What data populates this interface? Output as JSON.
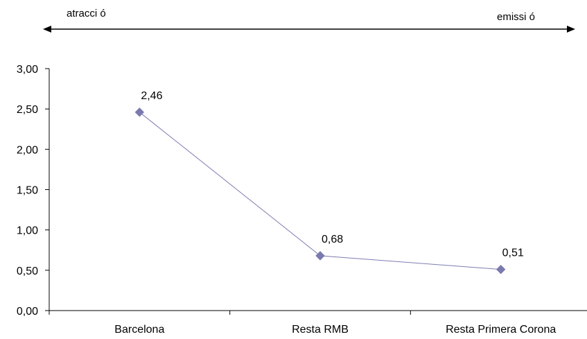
{
  "arrow_labels": {
    "left": "atracci ó",
    "right": "emissi ó"
  },
  "chart_data": {
    "type": "line",
    "categories": [
      "Barcelona",
      "Resta RMB",
      "Resta Primera Corona"
    ],
    "series": [
      {
        "values": [
          2.46,
          0.68,
          0.51
        ],
        "data_labels": [
          "2,46",
          "0,68",
          "0,51"
        ]
      }
    ],
    "title": "",
    "xlabel": "",
    "ylabel": "",
    "ylim": [
      0,
      3
    ],
    "y_ticks": [
      0,
      0.5,
      1,
      1.5,
      2,
      2.5,
      3
    ],
    "y_tick_labels": [
      "0,00",
      "0,50",
      "1,00",
      "1,50",
      "2,00",
      "2,50",
      "3,00"
    ],
    "grid": false,
    "legend": "none",
    "marker": "diamond"
  },
  "colors": {
    "series": "#7b7bb0",
    "marker": "#7a7aae",
    "axis": "#000000",
    "arrow": "#000000"
  }
}
